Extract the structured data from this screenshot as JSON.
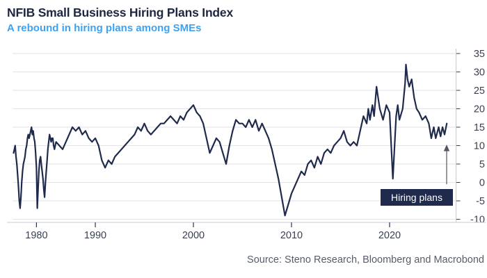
{
  "chart_data": {
    "type": "line",
    "title": "NFIB Small Business Hiring Plans Index",
    "subtitle": "A rebound in hiring plans among SMEs",
    "source": "Source: Steno Research, Bloomberg and Macrobond",
    "annotation": {
      "label": "Hiring plans"
    },
    "colors": {
      "line": "#1f2a4c",
      "subtitle": "#3ea2f0",
      "grid": "#e2e2e9",
      "axis": "#c9cad4",
      "tick_text": "#3a4052",
      "arrow": "#55565e"
    },
    "x_ticks": [
      "1980",
      "1990",
      "2000",
      "2010",
      "2020"
    ],
    "x_tick_years": [
      1980,
      1990,
      2000,
      2010,
      2020
    ],
    "y_ticks": [
      35,
      30,
      25,
      20,
      15,
      10,
      5,
      0,
      -5,
      -10
    ],
    "ylim": [
      -10,
      35
    ],
    "x_range_years": [
      1973,
      2025.92
    ],
    "grid": true,
    "legend": "none",
    "series": [
      {
        "name": "Hiring plans",
        "color": "#1f2a4c",
        "points": [
          [
            1973,
            8
          ],
          [
            1973.25,
            9
          ],
          [
            1973.5,
            10
          ],
          [
            1973.75,
            7
          ],
          [
            1974,
            5
          ],
          [
            1974.25,
            2
          ],
          [
            1974.5,
            -1
          ],
          [
            1974.75,
            -5
          ],
          [
            1975,
            -7
          ],
          [
            1975.25,
            -4
          ],
          [
            1975.5,
            0
          ],
          [
            1975.75,
            3
          ],
          [
            1976,
            5
          ],
          [
            1976.25,
            6
          ],
          [
            1976.5,
            7
          ],
          [
            1976.75,
            9
          ],
          [
            1977,
            10
          ],
          [
            1977.25,
            12
          ],
          [
            1977.5,
            13
          ],
          [
            1977.75,
            12
          ],
          [
            1978,
            13
          ],
          [
            1978.25,
            14
          ],
          [
            1978.5,
            15
          ],
          [
            1978.75,
            13
          ],
          [
            1979,
            14
          ],
          [
            1979.25,
            12
          ],
          [
            1979.5,
            11
          ],
          [
            1979.75,
            8
          ],
          [
            1980,
            4
          ],
          [
            1980.25,
            -7
          ],
          [
            1980.5,
            -2
          ],
          [
            1980.75,
            3
          ],
          [
            1981,
            6
          ],
          [
            1981.25,
            7
          ],
          [
            1981.5,
            5
          ],
          [
            1981.75,
            3
          ],
          [
            1982,
            1
          ],
          [
            1982.25,
            -2
          ],
          [
            1982.5,
            -4
          ],
          [
            1982.75,
            0
          ],
          [
            1983,
            3
          ],
          [
            1983.25,
            6
          ],
          [
            1983.5,
            9
          ],
          [
            1983.75,
            11
          ],
          [
            1984,
            13
          ],
          [
            1984.25,
            12
          ],
          [
            1984.5,
            11
          ],
          [
            1984.75,
            12
          ],
          [
            1985,
            12
          ],
          [
            1985.25,
            10
          ],
          [
            1985.5,
            9
          ],
          [
            1985.75,
            10
          ],
          [
            1986,
            11
          ],
          [
            1986.33,
            10
          ],
          [
            1986.67,
            9
          ],
          [
            1987,
            11
          ],
          [
            1987.33,
            13
          ],
          [
            1987.67,
            15
          ],
          [
            1988,
            14
          ],
          [
            1988.33,
            15
          ],
          [
            1988.67,
            13
          ],
          [
            1989,
            14
          ],
          [
            1989.33,
            12
          ],
          [
            1989.67,
            11
          ],
          [
            1990,
            12
          ],
          [
            1990.33,
            10
          ],
          [
            1990.67,
            6
          ],
          [
            1991,
            4
          ],
          [
            1991.33,
            6
          ],
          [
            1991.67,
            5
          ],
          [
            1992,
            7
          ],
          [
            1992.33,
            8
          ],
          [
            1992.67,
            9
          ],
          [
            1993,
            10
          ],
          [
            1993.33,
            11
          ],
          [
            1993.67,
            12
          ],
          [
            1994,
            13
          ],
          [
            1994.33,
            15
          ],
          [
            1994.67,
            14
          ],
          [
            1995,
            16
          ],
          [
            1995.33,
            14
          ],
          [
            1995.67,
            13
          ],
          [
            1996,
            14
          ],
          [
            1996.33,
            15
          ],
          [
            1996.67,
            16
          ],
          [
            1997,
            16
          ],
          [
            1997.33,
            17
          ],
          [
            1997.67,
            18
          ],
          [
            1998,
            17
          ],
          [
            1998.33,
            16
          ],
          [
            1998.67,
            18
          ],
          [
            1999,
            17
          ],
          [
            1999.33,
            19
          ],
          [
            1999.67,
            20
          ],
          [
            2000,
            21
          ],
          [
            2000.33,
            19
          ],
          [
            2000.67,
            18
          ],
          [
            2001,
            16
          ],
          [
            2001.33,
            12
          ],
          [
            2001.67,
            8
          ],
          [
            2002,
            10
          ],
          [
            2002.33,
            12
          ],
          [
            2002.67,
            11
          ],
          [
            2003,
            8
          ],
          [
            2003.33,
            5
          ],
          [
            2003.67,
            10
          ],
          [
            2004,
            14
          ],
          [
            2004.33,
            17
          ],
          [
            2004.67,
            16
          ],
          [
            2005,
            16
          ],
          [
            2005.33,
            15
          ],
          [
            2005.67,
            17
          ],
          [
            2006,
            15
          ],
          [
            2006.33,
            17
          ],
          [
            2006.67,
            14
          ],
          [
            2007,
            16
          ],
          [
            2007.33,
            14
          ],
          [
            2007.67,
            12
          ],
          [
            2008,
            9
          ],
          [
            2008.33,
            5
          ],
          [
            2008.67,
            1
          ],
          [
            2009,
            -4
          ],
          [
            2009.33,
            -9
          ],
          [
            2009.67,
            -6
          ],
          [
            2010,
            -3
          ],
          [
            2010.33,
            -1
          ],
          [
            2010.67,
            1
          ],
          [
            2011,
            3
          ],
          [
            2011.33,
            2
          ],
          [
            2011.67,
            5
          ],
          [
            2012,
            6
          ],
          [
            2012.33,
            4
          ],
          [
            2012.67,
            7
          ],
          [
            2013,
            5
          ],
          [
            2013.33,
            8
          ],
          [
            2013.67,
            9
          ],
          [
            2014,
            8
          ],
          [
            2014.33,
            10
          ],
          [
            2014.67,
            11
          ],
          [
            2015,
            12
          ],
          [
            2015.33,
            14
          ],
          [
            2015.67,
            11
          ],
          [
            2016,
            10
          ],
          [
            2016.33,
            11
          ],
          [
            2016.67,
            10
          ],
          [
            2017,
            14
          ],
          [
            2017.33,
            18
          ],
          [
            2017.67,
            16
          ],
          [
            2017.83,
            20
          ],
          [
            2018,
            17
          ],
          [
            2018.25,
            21
          ],
          [
            2018.42,
            18
          ],
          [
            2018.67,
            26
          ],
          [
            2018.83,
            23
          ],
          [
            2019,
            20
          ],
          [
            2019.33,
            17
          ],
          [
            2019.67,
            21
          ],
          [
            2020,
            19
          ],
          [
            2020.33,
            1
          ],
          [
            2020.67,
            18
          ],
          [
            2020.83,
            21
          ],
          [
            2021,
            17
          ],
          [
            2021.33,
            20
          ],
          [
            2021.58,
            27
          ],
          [
            2021.67,
            32
          ],
          [
            2021.83,
            28
          ],
          [
            2022,
            26
          ],
          [
            2022.25,
            28
          ],
          [
            2022.5,
            23
          ],
          [
            2022.75,
            20
          ],
          [
            2023,
            19
          ],
          [
            2023.33,
            17
          ],
          [
            2023.67,
            18
          ],
          [
            2024,
            16
          ],
          [
            2024.25,
            12
          ],
          [
            2024.5,
            15
          ],
          [
            2024.7,
            12
          ],
          [
            2024.9,
            14
          ],
          [
            2025,
            15
          ],
          [
            2025.2,
            12.5
          ],
          [
            2025.4,
            15
          ],
          [
            2025.6,
            13
          ],
          [
            2025.83,
            16
          ]
        ]
      }
    ]
  }
}
